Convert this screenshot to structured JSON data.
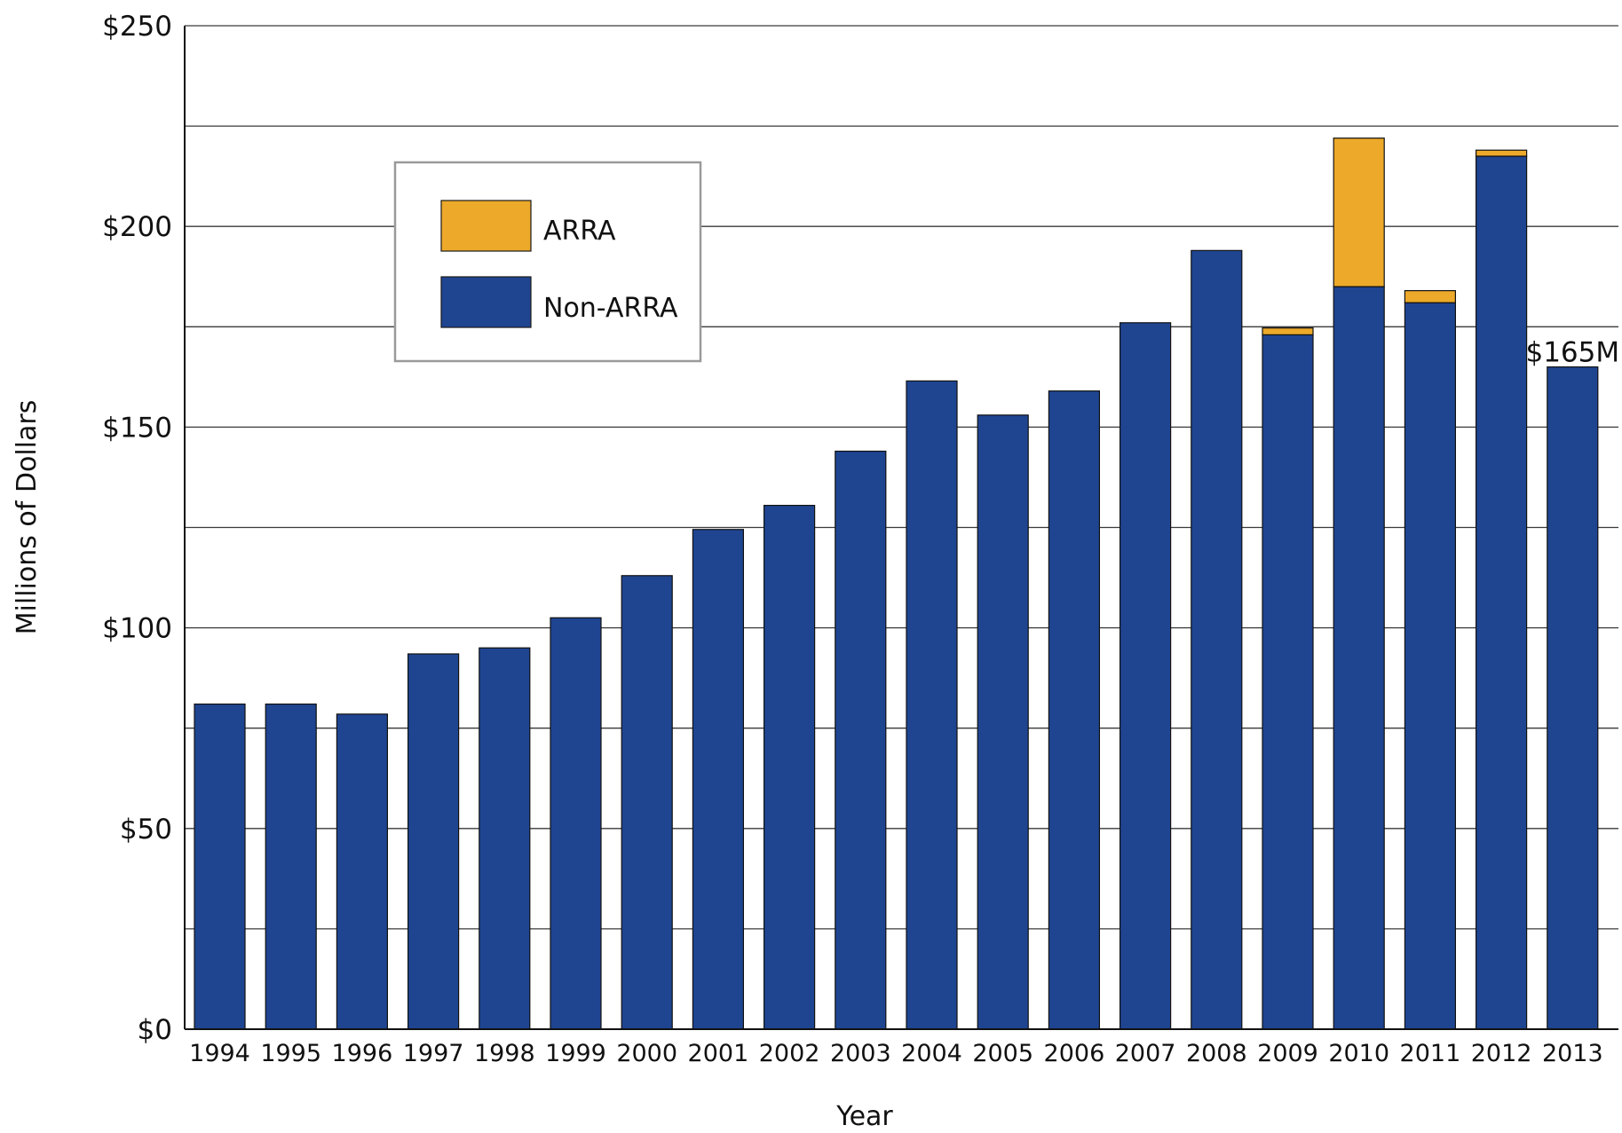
{
  "chart_data": {
    "type": "bar",
    "stacked": true,
    "categories": [
      "1994",
      "1995",
      "1996",
      "1997",
      "1998",
      "1999",
      "2000",
      "2001",
      "2002",
      "2003",
      "2004",
      "2005",
      "2006",
      "2007",
      "2008",
      "2009",
      "2010",
      "2011",
      "2012",
      "2013"
    ],
    "series": [
      {
        "name": "Non-ARRA",
        "color": "#1f4591",
        "values": [
          81,
          81,
          78.5,
          93.5,
          95,
          102.5,
          113,
          124.5,
          130.5,
          144,
          161.5,
          153,
          159,
          176,
          194,
          173,
          185,
          181,
          217.5,
          165
        ]
      },
      {
        "name": "ARRA",
        "color": "#eca92a",
        "values": [
          0,
          0,
          0,
          0,
          0,
          0,
          0,
          0,
          0,
          0,
          0,
          0,
          0,
          0,
          0,
          1.7,
          37,
          3,
          1.5,
          0
        ]
      }
    ],
    "xlabel": "Year",
    "ylabel": "Millions of Dollars",
    "ylim": [
      0,
      250
    ],
    "y_ticks": [
      {
        "value": 0,
        "label": "$0"
      },
      {
        "value": 50,
        "label": "$50"
      },
      {
        "value": 100,
        "label": "$100"
      },
      {
        "value": 150,
        "label": "$150"
      },
      {
        "value": 200,
        "label": "$200"
      },
      {
        "value": 250,
        "label": "$250"
      }
    ],
    "gridlines_every": 25,
    "grid": true,
    "legend": {
      "placement": "upper-left",
      "entries": [
        {
          "name": "ARRA",
          "color": "#eca92a"
        },
        {
          "name": "Non-ARRA",
          "color": "#1f4591"
        }
      ]
    },
    "annotations": [
      {
        "category": "2013",
        "text": "$165M"
      }
    ]
  }
}
